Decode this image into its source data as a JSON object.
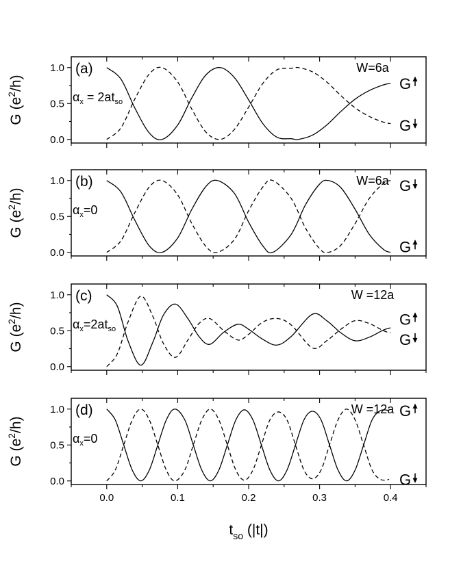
{
  "chart_data": {
    "type": "line",
    "shared_x_axis": {
      "label": "t",
      "label_subscript": "so",
      "label_unit": "(|t|)",
      "xlim": [
        -0.05,
        0.45
      ],
      "ticks": [
        0.0,
        0.1,
        0.2,
        0.3,
        0.4
      ],
      "tick_labels": [
        "0.0",
        "0.1",
        "0.2",
        "0.3",
        "0.4"
      ]
    },
    "panels": [
      {
        "panel_label": "(a)",
        "width_label": "W=6a",
        "alpha_label": {
          "prefix": "α",
          "sub": "x",
          "eq": " = 2at",
          "eq_sub": "so"
        },
        "ylabel": "G (e²/h)",
        "ylim": [
          -0.05,
          1.15
        ],
        "yticks": [
          "0.0",
          "0.5",
          "1.0"
        ],
        "series": [
          {
            "name": "G↑",
            "style": "solid",
            "x": [
              0.0,
              0.02,
              0.04,
              0.06,
              0.078,
              0.1,
              0.12,
              0.14,
              0.16,
              0.18,
              0.2,
              0.22,
              0.24,
              0.26,
              0.27,
              0.29,
              0.31,
              0.33,
              0.35,
              0.37,
              0.39,
              0.4
            ],
            "y": [
              1.0,
              0.84,
              0.43,
              0.09,
              0.0,
              0.2,
              0.58,
              0.9,
              1.0,
              0.86,
              0.55,
              0.22,
              0.03,
              0.01,
              0.0,
              0.06,
              0.2,
              0.39,
              0.56,
              0.68,
              0.76,
              0.78
            ]
          },
          {
            "name": "G↓",
            "style": "dashed",
            "x": [
              0.0,
              0.02,
              0.04,
              0.06,
              0.078,
              0.1,
              0.12,
              0.14,
              0.16,
              0.18,
              0.2,
              0.22,
              0.24,
              0.26,
              0.27,
              0.29,
              0.31,
              0.33,
              0.35,
              0.37,
              0.39,
              0.4
            ],
            "y": [
              0.0,
              0.16,
              0.57,
              0.91,
              1.0,
              0.8,
              0.42,
              0.1,
              0.0,
              0.14,
              0.45,
              0.78,
              0.97,
              0.99,
              1.0,
              0.94,
              0.8,
              0.61,
              0.44,
              0.32,
              0.24,
              0.22
            ]
          }
        ],
        "end_labels": [
          {
            "text": "G",
            "arrow": "up",
            "at_y": 0.78
          },
          {
            "text": "G",
            "arrow": "down",
            "at_y": 0.2
          }
        ]
      },
      {
        "panel_label": "(b)",
        "width_label": "W=6a",
        "alpha_label": {
          "prefix": "α",
          "sub": "x",
          "eq": "=0",
          "eq_sub": ""
        },
        "ylabel": "G (e²/h)",
        "ylim": [
          -0.05,
          1.15
        ],
        "yticks": [
          "0.0",
          "0.5",
          "1.0"
        ],
        "series": [
          {
            "name": "G↑",
            "style": "solid",
            "x": [
              0.0,
              0.02,
              0.04,
              0.06,
              0.078,
              0.1,
              0.12,
              0.14,
              0.156,
              0.18,
              0.2,
              0.22,
              0.234,
              0.26,
              0.28,
              0.3,
              0.312,
              0.33,
              0.35,
              0.37,
              0.39,
              0.4
            ],
            "y": [
              1.0,
              0.84,
              0.44,
              0.09,
              0.0,
              0.2,
              0.6,
              0.92,
              1.0,
              0.82,
              0.42,
              0.09,
              0.0,
              0.25,
              0.66,
              0.95,
              1.0,
              0.9,
              0.6,
              0.25,
              0.04,
              0.0
            ]
          },
          {
            "name": "G↓",
            "style": "dashed",
            "x": [
              0.0,
              0.02,
              0.04,
              0.06,
              0.078,
              0.1,
              0.12,
              0.14,
              0.156,
              0.18,
              0.2,
              0.22,
              0.234,
              0.26,
              0.28,
              0.3,
              0.312,
              0.33,
              0.35,
              0.37,
              0.39,
              0.4
            ],
            "y": [
              0.0,
              0.16,
              0.56,
              0.91,
              1.0,
              0.8,
              0.4,
              0.08,
              0.0,
              0.18,
              0.58,
              0.91,
              1.0,
              0.75,
              0.34,
              0.05,
              0.0,
              0.1,
              0.4,
              0.75,
              0.96,
              1.0
            ]
          }
        ],
        "end_labels": [
          {
            "text": "G",
            "arrow": "down",
            "at_y": 0.93
          },
          {
            "text": "G",
            "arrow": "up",
            "at_y": 0.08
          }
        ]
      },
      {
        "panel_label": "(c)",
        "width_label": "W =12a",
        "alpha_label": {
          "prefix": "α",
          "sub": "x",
          "eq": "=2at",
          "eq_sub": "so"
        },
        "ylabel": "G (e²/h)",
        "ylim": [
          -0.05,
          1.15
        ],
        "yticks": [
          "0.0",
          "0.5",
          "1.0"
        ],
        "series": [
          {
            "name": "G↑",
            "style": "solid",
            "x": [
              0.0,
              0.015,
              0.03,
              0.048,
              0.065,
              0.08,
              0.097,
              0.115,
              0.13,
              0.145,
              0.165,
              0.185,
              0.2,
              0.22,
              0.24,
              0.26,
              0.29,
              0.31,
              0.33,
              0.35,
              0.37,
              0.39,
              0.4
            ],
            "y": [
              1.0,
              0.84,
              0.36,
              0.02,
              0.34,
              0.72,
              0.87,
              0.66,
              0.42,
              0.31,
              0.48,
              0.59,
              0.52,
              0.38,
              0.3,
              0.42,
              0.73,
              0.64,
              0.47,
              0.36,
              0.41,
              0.51,
              0.54
            ]
          },
          {
            "name": "G↓",
            "style": "dashed",
            "x": [
              0.0,
              0.015,
              0.03,
              0.048,
              0.065,
              0.08,
              0.097,
              0.115,
              0.13,
              0.145,
              0.165,
              0.185,
              0.2,
              0.22,
              0.24,
              0.26,
              0.29,
              0.31,
              0.33,
              0.35,
              0.37,
              0.39,
              0.4
            ],
            "y": [
              0.0,
              0.18,
              0.62,
              0.98,
              0.7,
              0.32,
              0.13,
              0.38,
              0.6,
              0.67,
              0.5,
              0.37,
              0.45,
              0.62,
              0.67,
              0.58,
              0.26,
              0.36,
              0.52,
              0.64,
              0.6,
              0.5,
              0.47
            ]
          }
        ],
        "end_labels": [
          {
            "text": "G",
            "arrow": "up",
            "at_y": 0.66
          },
          {
            "text": "G",
            "arrow": "down",
            "at_y": 0.38
          }
        ]
      },
      {
        "panel_label": "(d)",
        "width_label": "W =12a",
        "alpha_label": {
          "prefix": "α",
          "sub": "x",
          "eq": "=0",
          "eq_sub": ""
        },
        "ylabel": "G (e²/h)",
        "ylim": [
          -0.05,
          1.15
        ],
        "yticks": [
          "0.0",
          "0.5",
          "1.0"
        ],
        "series": [
          {
            "name": "G↑",
            "style": "solid",
            "x": [
              0.0,
              0.012,
              0.024,
              0.036,
              0.048,
              0.06,
              0.072,
              0.084,
              0.096,
              0.11,
              0.122,
              0.134,
              0.146,
              0.158,
              0.17,
              0.182,
              0.194,
              0.206,
              0.218,
              0.23,
              0.242,
              0.254,
              0.266,
              0.278,
              0.29,
              0.302,
              0.314,
              0.326,
              0.338,
              0.35,
              0.362,
              0.374,
              0.386,
              0.398
            ],
            "y": [
              1.0,
              0.85,
              0.5,
              0.15,
              0.0,
              0.15,
              0.5,
              0.85,
              1.0,
              0.85,
              0.5,
              0.15,
              0.0,
              0.15,
              0.5,
              0.85,
              0.99,
              0.85,
              0.5,
              0.15,
              0.0,
              0.15,
              0.5,
              0.85,
              0.97,
              0.85,
              0.5,
              0.15,
              0.0,
              0.15,
              0.5,
              0.85,
              0.98,
              0.98
            ]
          },
          {
            "name": "G↓",
            "style": "dashed",
            "x": [
              0.0,
              0.012,
              0.024,
              0.036,
              0.048,
              0.06,
              0.072,
              0.084,
              0.096,
              0.11,
              0.122,
              0.134,
              0.146,
              0.158,
              0.17,
              0.182,
              0.194,
              0.206,
              0.218,
              0.23,
              0.242,
              0.254,
              0.266,
              0.278,
              0.29,
              0.302,
              0.314,
              0.326,
              0.338,
              0.35,
              0.362,
              0.374,
              0.386,
              0.398
            ],
            "y": [
              0.0,
              0.15,
              0.5,
              0.85,
              1.0,
              0.85,
              0.5,
              0.15,
              0.0,
              0.15,
              0.5,
              0.85,
              1.0,
              0.85,
              0.5,
              0.15,
              0.01,
              0.15,
              0.5,
              0.85,
              0.96,
              0.85,
              0.5,
              0.15,
              0.03,
              0.15,
              0.5,
              0.85,
              1.0,
              0.85,
              0.5,
              0.15,
              0.02,
              0.02
            ]
          }
        ],
        "end_labels": [
          {
            "text": "G",
            "arrow": "up",
            "at_y": 0.98
          },
          {
            "text": "G",
            "arrow": "down",
            "at_y": 0.02
          }
        ]
      }
    ]
  }
}
